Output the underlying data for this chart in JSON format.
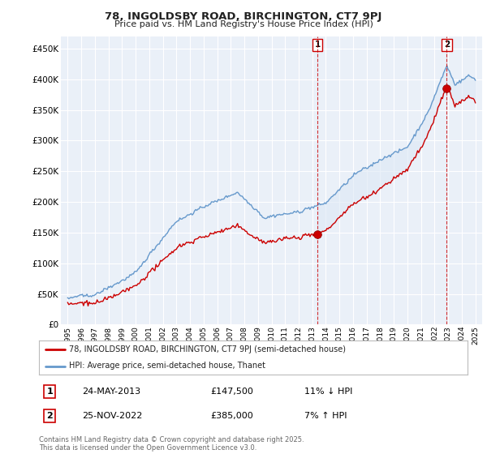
{
  "title": "78, INGOLDSBY ROAD, BIRCHINGTON, CT7 9PJ",
  "subtitle": "Price paid vs. HM Land Registry's House Price Index (HPI)",
  "ylabel_ticks": [
    "£0",
    "£50K",
    "£100K",
    "£150K",
    "£200K",
    "£250K",
    "£300K",
    "£350K",
    "£400K",
    "£450K"
  ],
  "ytick_values": [
    0,
    50000,
    100000,
    150000,
    200000,
    250000,
    300000,
    350000,
    400000,
    450000
  ],
  "ylim": [
    0,
    470000
  ],
  "xlim_start": 1994.5,
  "xlim_end": 2025.5,
  "transaction1": {
    "date_x": 2013.39,
    "price": 147500,
    "label": "1"
  },
  "transaction2": {
    "date_x": 2022.9,
    "price": 385000,
    "label": "2"
  },
  "legend_line1_label": "78, INGOLDSBY ROAD, BIRCHINGTON, CT7 9PJ (semi-detached house)",
  "legend_line2_label": "HPI: Average price, semi-detached house, Thanet",
  "footer": "Contains HM Land Registry data © Crown copyright and database right 2025.\nThis data is licensed under the Open Government Licence v3.0.",
  "line_color_red": "#cc0000",
  "line_color_blue": "#6699cc",
  "fill_color_blue": "#dde8f5",
  "background_color": "#ffffff",
  "plot_bg_color": "#eaf0f8",
  "grid_color": "#ffffff",
  "dashed_color": "#cc0000"
}
